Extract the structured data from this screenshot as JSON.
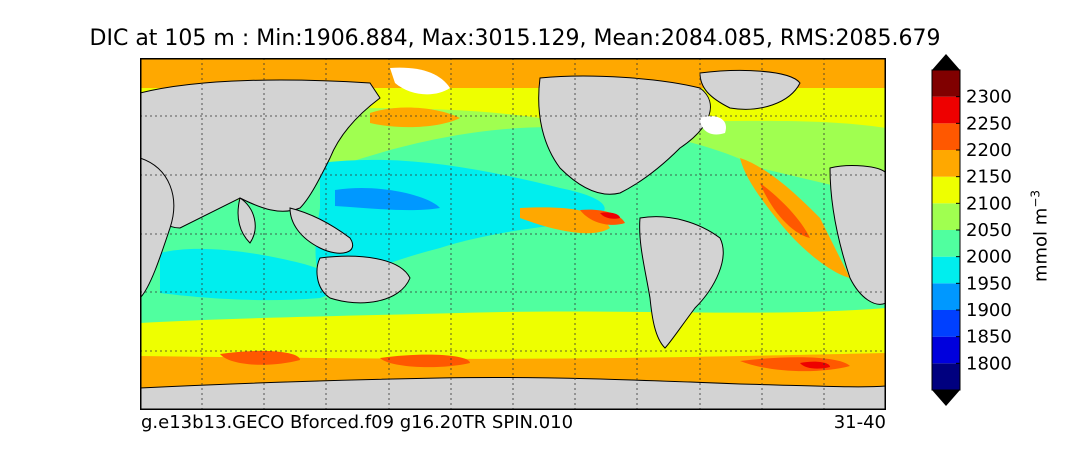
{
  "chart_data": {
    "type": "heatmap",
    "title": "DIC at 105 m : Min:1906.884, Max:3015.129, Mean:2084.085, RMS:2085.679",
    "run_label": "g.e13b13.GECO Bforced.f09 g16.20TR SPIN.010",
    "period_label": "31-40",
    "colorbar": {
      "label": "mmol m",
      "label_exponent": "−3",
      "extend": "both",
      "levels": [
        1750,
        1800,
        1850,
        1900,
        1950,
        2000,
        2050,
        2100,
        2150,
        2200,
        2250,
        2300,
        2350
      ],
      "tick_labels": [
        "1800",
        "1850",
        "1900",
        "1950",
        "2000",
        "2050",
        "2100",
        "2150",
        "2200",
        "2250",
        "2300"
      ],
      "colors": [
        "#00007f",
        "#0000dd",
        "#0040ff",
        "#0098ff",
        "#00eeee",
        "#50ff9f",
        "#a0ff50",
        "#eeff00",
        "#ffa800",
        "#ff5800",
        "#ee0000",
        "#800000"
      ],
      "under_color": "#000080",
      "over_color": "#800000"
    },
    "land_color": "#d3d3d3",
    "grid": true,
    "projection": "cylindrical, 30E–390E"
  }
}
